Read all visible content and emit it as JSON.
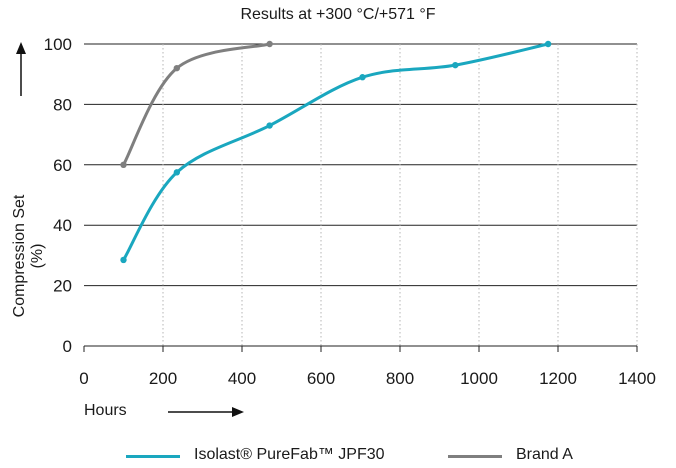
{
  "chart_data": {
    "type": "line",
    "title": "Results at +300 °C/+571 °F",
    "xlabel": "Hours",
    "ylabel": "Compression Set (%)",
    "xlim": [
      0,
      1400
    ],
    "ylim": [
      0,
      100
    ],
    "x_ticks": [
      "0",
      "200",
      "400",
      "600",
      "800",
      "1000",
      "1200",
      "1400"
    ],
    "y_ticks": [
      "0",
      "20",
      "40",
      "60",
      "80",
      "100"
    ],
    "grid": "horizontal solid, vertical dotted",
    "legend_position": "bottom",
    "series": [
      {
        "name": "Isolast® PureFab™ JPF30",
        "color": "#1aa7bf",
        "x": [
          100,
          235,
          470,
          705,
          940,
          1175
        ],
        "y": [
          28.5,
          57.5,
          73,
          89,
          93,
          100
        ]
      },
      {
        "name": "Brand A",
        "color": "#7f7f7f",
        "x": [
          100,
          235,
          470
        ],
        "y": [
          60,
          92,
          100
        ]
      }
    ]
  }
}
